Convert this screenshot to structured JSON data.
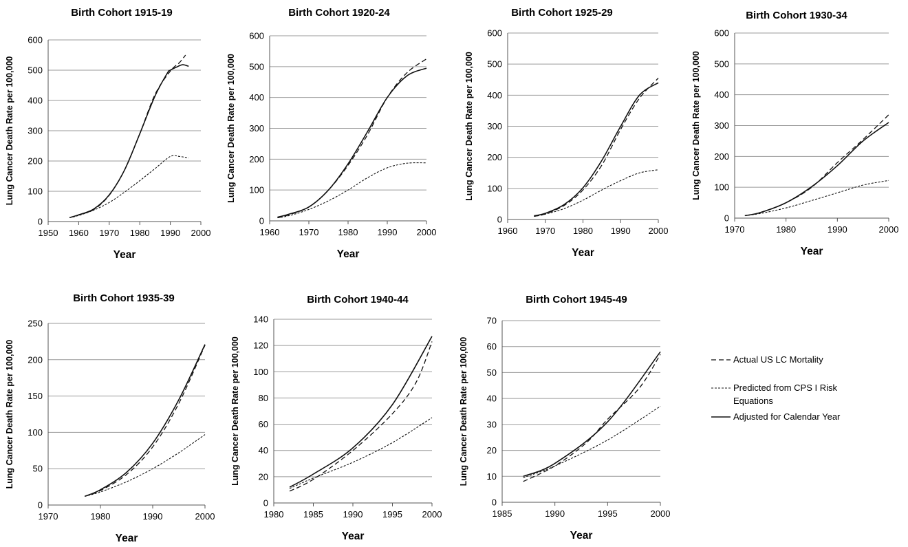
{
  "chart_data": [
    {
      "type": "line",
      "title": "Birth Cohort 1915-19",
      "xlabel": "Year",
      "ylabel": "Lung Cancer Death Rate per 100,000",
      "xlim": [
        1950,
        2000
      ],
      "xticks": [
        1950,
        1960,
        1970,
        1980,
        1990,
        2000
      ],
      "ylim": [
        0,
        600
      ],
      "yticks": [
        0,
        100,
        200,
        300,
        400,
        500,
        600
      ],
      "series": [
        {
          "key": "actual",
          "x": [
            1957,
            1960,
            1965,
            1970,
            1975,
            1980,
            1985,
            1990,
            1993,
            1995
          ],
          "values": [
            13,
            22,
            40,
            87,
            170,
            290,
            420,
            497,
            525,
            550
          ]
        },
        {
          "key": "predicted",
          "x": [
            1957,
            1960,
            1965,
            1970,
            1975,
            1980,
            1985,
            1990,
            1993,
            1996
          ],
          "values": [
            13,
            20,
            38,
            63,
            97,
            135,
            175,
            215,
            215,
            210
          ]
        },
        {
          "key": "adjusted",
          "x": [
            1957,
            1960,
            1965,
            1970,
            1975,
            1980,
            1985,
            1989,
            1990,
            1992,
            1994,
            1996
          ],
          "values": [
            13,
            22,
            42,
            88,
            170,
            290,
            415,
            490,
            500,
            510,
            518,
            513
          ]
        }
      ]
    },
    {
      "type": "line",
      "title": "Birth Cohort 1920-24",
      "xlabel": "Year",
      "ylabel": "Lung Cancer Death Rate per 100,000",
      "xlim": [
        1960,
        2000
      ],
      "xticks": [
        1960,
        1970,
        1980,
        1990,
        2000
      ],
      "ylim": [
        0,
        600
      ],
      "yticks": [
        0,
        100,
        200,
        300,
        400,
        500,
        600
      ],
      "series": [
        {
          "key": "actual",
          "x": [
            1962,
            1965,
            1970,
            1975,
            1980,
            1985,
            1990,
            1995,
            2000
          ],
          "values": [
            10,
            20,
            45,
            100,
            180,
            280,
            400,
            480,
            525
          ]
        },
        {
          "key": "predicted",
          "x": [
            1962,
            1965,
            1970,
            1975,
            1980,
            1985,
            1990,
            1995,
            2000
          ],
          "values": [
            10,
            17,
            37,
            65,
            100,
            140,
            172,
            187,
            188
          ]
        },
        {
          "key": "adjusted",
          "x": [
            1962,
            1965,
            1970,
            1975,
            1980,
            1985,
            1990,
            1995,
            2000
          ],
          "values": [
            12,
            22,
            45,
            100,
            185,
            290,
            400,
            470,
            495
          ]
        }
      ]
    },
    {
      "type": "line",
      "title": "Birth Cohort 1925-29",
      "xlabel": "Year",
      "ylabel": "Lung Cancer Death Rate per 100,000",
      "xlim": [
        1960,
        2000
      ],
      "xticks": [
        1960,
        1970,
        1980,
        1990,
        2000
      ],
      "ylim": [
        0,
        600
      ],
      "yticks": [
        0,
        100,
        200,
        300,
        400,
        500,
        600
      ],
      "series": [
        {
          "key": "actual",
          "x": [
            1967,
            1970,
            1975,
            1980,
            1985,
            1990,
            1995,
            2000
          ],
          "values": [
            10,
            18,
            45,
            95,
            175,
            290,
            390,
            455
          ]
        },
        {
          "key": "predicted",
          "x": [
            1967,
            1970,
            1975,
            1980,
            1985,
            1990,
            1995,
            2000
          ],
          "values": [
            10,
            17,
            35,
            62,
            95,
            125,
            150,
            160
          ]
        },
        {
          "key": "adjusted",
          "x": [
            1967,
            1970,
            1975,
            1980,
            1985,
            1990,
            1995,
            2000
          ],
          "values": [
            12,
            20,
            48,
            102,
            190,
            300,
            400,
            440
          ]
        }
      ]
    },
    {
      "type": "line",
      "title": "Birth Cohort 1930-34",
      "xlabel": "Year",
      "ylabel": "Lung Cancer Death Rate per 100,000",
      "xlim": [
        1970,
        2000
      ],
      "xticks": [
        1970,
        1980,
        1990,
        2000
      ],
      "ylim": [
        0,
        600
      ],
      "yticks": [
        0,
        100,
        200,
        300,
        400,
        500,
        600
      ],
      "series": [
        {
          "key": "actual",
          "x": [
            1972,
            1975,
            1980,
            1985,
            1990,
            1995,
            2000
          ],
          "values": [
            8,
            18,
            50,
            100,
            180,
            255,
            335
          ]
        },
        {
          "key": "predicted",
          "x": [
            1972,
            1975,
            1980,
            1985,
            1990,
            1995,
            2000
          ],
          "values": [
            8,
            15,
            33,
            57,
            82,
            107,
            122
          ]
        },
        {
          "key": "adjusted",
          "x": [
            1972,
            1975,
            1980,
            1985,
            1990,
            1995,
            2000
          ],
          "values": [
            8,
            18,
            50,
            102,
            170,
            250,
            310
          ]
        }
      ]
    },
    {
      "type": "line",
      "title": "Birth Cohort 1935-39",
      "xlabel": "Year",
      "ylabel": "Lung Cancer Death Rate per 100,000",
      "xlim": [
        1970,
        2000
      ],
      "xticks": [
        1970,
        1980,
        1990,
        2000
      ],
      "ylim": [
        0,
        250
      ],
      "yticks": [
        0,
        50,
        100,
        150,
        200,
        250
      ],
      "series": [
        {
          "key": "actual",
          "x": [
            1977,
            1980,
            1985,
            1990,
            1995,
            2000
          ],
          "values": [
            12,
            20,
            42,
            80,
            140,
            220
          ]
        },
        {
          "key": "predicted",
          "x": [
            1977,
            1980,
            1985,
            1990,
            1995,
            2000
          ],
          "values": [
            12,
            18,
            32,
            50,
            72,
            97
          ]
        },
        {
          "key": "adjusted",
          "x": [
            1977,
            1980,
            1985,
            1990,
            1995,
            2000
          ],
          "values": [
            12,
            21,
            45,
            85,
            145,
            221
          ]
        }
      ]
    },
    {
      "type": "line",
      "title": "Birth Cohort 1940-44",
      "xlabel": "Year",
      "ylabel": "Lung Cancer Death Rate per 100,000",
      "xlim": [
        1980,
        2000
      ],
      "xticks": [
        1980,
        1985,
        1990,
        1995,
        2000
      ],
      "ylim": [
        0,
        140
      ],
      "yticks": [
        0,
        20,
        40,
        60,
        80,
        100,
        120,
        140
      ],
      "series": [
        {
          "key": "actual",
          "x": [
            1982,
            1985,
            1990,
            1995,
            1998,
            2000
          ],
          "values": [
            9,
            18,
            40,
            68,
            92,
            123
          ]
        },
        {
          "key": "predicted",
          "x": [
            1982,
            1985,
            1990,
            1995,
            2000
          ],
          "values": [
            11,
            19,
            31,
            46,
            65
          ]
        },
        {
          "key": "adjusted",
          "x": [
            1982,
            1985,
            1990,
            1995,
            2000
          ],
          "values": [
            12,
            22,
            42,
            75,
            127
          ]
        }
      ]
    },
    {
      "type": "line",
      "title": "Birth Cohort 1945-49",
      "xlabel": "Year",
      "ylabel": "Lung Cancer Death Rate per 100,000",
      "xlim": [
        1985,
        2000
      ],
      "xticks": [
        1985,
        1990,
        1995,
        2000
      ],
      "ylim": [
        0,
        70
      ],
      "yticks": [
        0,
        10,
        20,
        30,
        40,
        50,
        60,
        70
      ],
      "series": [
        {
          "key": "actual",
          "x": [
            1987,
            1990,
            1993,
            1995,
            1998,
            2000
          ],
          "values": [
            8,
            14,
            23,
            32,
            44,
            57
          ]
        },
        {
          "key": "predicted",
          "x": [
            1987,
            1990,
            1995,
            2000
          ],
          "values": [
            9.5,
            14,
            24,
            37
          ]
        },
        {
          "key": "adjusted",
          "x": [
            1987,
            1990,
            1995,
            2000
          ],
          "values": [
            10,
            15,
            31,
            58
          ]
        }
      ]
    }
  ],
  "legend": {
    "position": "right",
    "items": [
      {
        "key": "actual",
        "lines": [
          "Actual US LC Mortality"
        ]
      },
      {
        "key": "predicted",
        "lines": [
          "Predicted from CPS I Risk",
          "Equations"
        ]
      },
      {
        "key": "adjusted",
        "lines": [
          "Adjusted for Calendar Year"
        ]
      }
    ]
  }
}
